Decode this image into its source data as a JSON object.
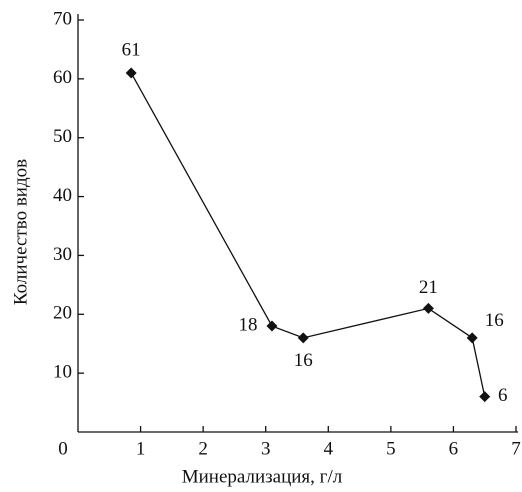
{
  "chart_data": {
    "type": "line",
    "x_label": "Минерализация, г/л",
    "y_label": "Количество видов",
    "x": [
      0.85,
      3.1,
      3.6,
      5.6,
      6.3,
      6.5
    ],
    "series": [
      {
        "name": "Количество видов",
        "color": "#111111",
        "values": [
          61,
          18,
          16,
          21,
          16,
          6
        ]
      }
    ],
    "xlim": [
      0,
      7
    ],
    "xticks": [
      0,
      1,
      2,
      3,
      4,
      5,
      6,
      7
    ],
    "ylim": [
      0,
      70
    ],
    "yticks": [
      10,
      20,
      30,
      40,
      50,
      60,
      70
    ],
    "grid": false
  }
}
